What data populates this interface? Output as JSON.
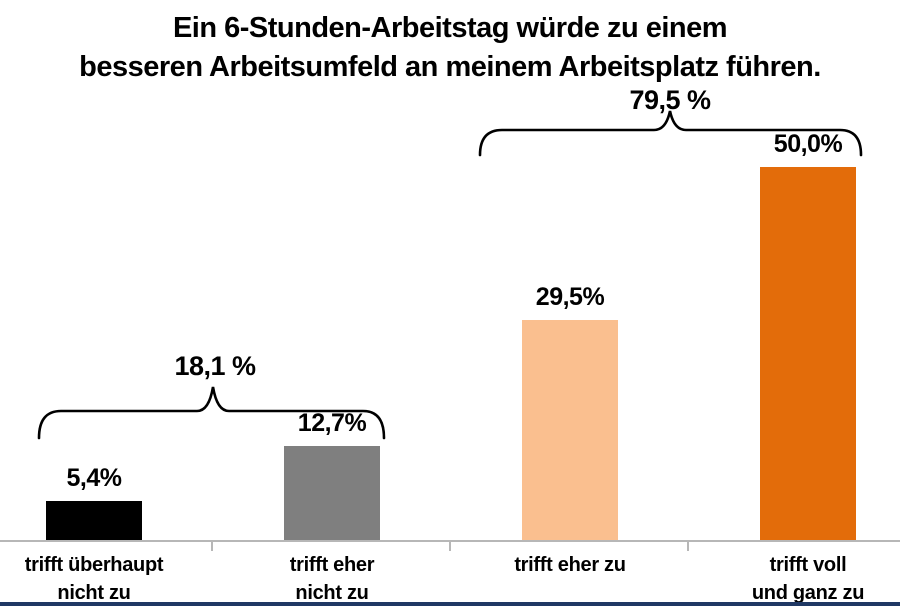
{
  "header": {
    "title_lines": [
      "Ein 6-Stunden-Arbeitstag würde zu einem",
      "besseren Arbeitsumfeld an meinem Arbeitsplatz führen."
    ]
  },
  "chart_data": {
    "type": "bar",
    "title": "Ein 6-Stunden-Arbeitstag würde zu einem besseren Arbeitsumfeld an meinem Arbeitsplatz führen.",
    "categories": [
      "trifft überhaupt\nnicht zu",
      "trifft eher\nnicht zu",
      "trifft eher zu",
      "trifft voll\nund ganz zu"
    ],
    "values": [
      5.4,
      12.7,
      29.5,
      50.0
    ],
    "value_labels": [
      "5,4%",
      "12,7%",
      "29,5%",
      "50,0%"
    ],
    "bar_colors": [
      "#000000",
      "#7F7F7F",
      "#FABF8F",
      "#E36C0A"
    ],
    "xlabel": "",
    "ylabel": "",
    "ylim": [
      0,
      54
    ],
    "grid": false,
    "legend": false,
    "annotations": [
      {
        "label": "18,1 %",
        "value": 18.1,
        "spans_categories": [
          "trifft überhaupt nicht zu",
          "trifft eher nicht zu"
        ]
      },
      {
        "label": "79,5 %",
        "value": 79.5,
        "spans_categories": [
          "trifft eher zu",
          "trifft voll und ganz zu"
        ]
      }
    ],
    "axis_line_color": "#B7B7B7",
    "bracket_color": "#000000",
    "bottom_divider_color": "#1F3864"
  }
}
